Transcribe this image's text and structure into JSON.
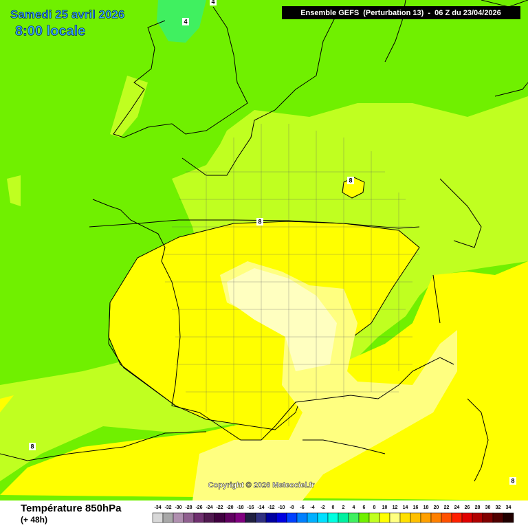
{
  "header": {
    "date": "Samedi 25 avril 2026",
    "time": "8:00 locale",
    "model": "Ensemble GEFS  (Perturbation 13)  -  06 Z du 23/04/2026"
  },
  "copyright": "Copyright © 2026 Meteociel.fr",
  "footer": {
    "title": "Température 850hPa",
    "subtitle": "(+ 48h)"
  },
  "contour_labels": [
    "4",
    "4",
    "8",
    "8",
    "8",
    "8"
  ],
  "legend": {
    "items": [
      {
        "value": -34,
        "color": "#d8d8d8"
      },
      {
        "value": -32,
        "color": "#a8a8a8"
      },
      {
        "value": -30,
        "color": "#b090b0"
      },
      {
        "value": -28,
        "color": "#906090"
      },
      {
        "value": -26,
        "color": "#703070"
      },
      {
        "value": -24,
        "color": "#501850"
      },
      {
        "value": -22,
        "color": "#400040"
      },
      {
        "value": -20,
        "color": "#600060"
      },
      {
        "value": -18,
        "color": "#800080"
      },
      {
        "value": -16,
        "color": "#202040"
      },
      {
        "value": -14,
        "color": "#303080"
      },
      {
        "value": -12,
        "color": "#0000a0"
      },
      {
        "value": -10,
        "color": "#0000e0"
      },
      {
        "value": -8,
        "color": "#0040ff"
      },
      {
        "value": -6,
        "color": "#0080ff"
      },
      {
        "value": -4,
        "color": "#00b0ff"
      },
      {
        "value": -2,
        "color": "#00e0ff"
      },
      {
        "value": 0,
        "color": "#00ffe0"
      },
      {
        "value": 2,
        "color": "#00f0a0"
      },
      {
        "value": 4,
        "color": "#40f060"
      },
      {
        "value": 6,
        "color": "#70f000"
      },
      {
        "value": 8,
        "color": "#c0ff20"
      },
      {
        "value": 10,
        "color": "#ffff00"
      },
      {
        "value": 12,
        "color": "#ffff80"
      },
      {
        "value": 14,
        "color": "#ffe000"
      },
      {
        "value": 16,
        "color": "#ffc000"
      },
      {
        "value": 18,
        "color": "#ffa000"
      },
      {
        "value": 20,
        "color": "#ff8000"
      },
      {
        "value": 22,
        "color": "#ff5000"
      },
      {
        "value": 24,
        "color": "#ff2000"
      },
      {
        "value": 26,
        "color": "#e00000"
      },
      {
        "value": 28,
        "color": "#b00000"
      },
      {
        "value": 30,
        "color": "#800000"
      },
      {
        "value": 32,
        "color": "#500000"
      },
      {
        "value": 34,
        "color": "#200000"
      }
    ]
  }
}
